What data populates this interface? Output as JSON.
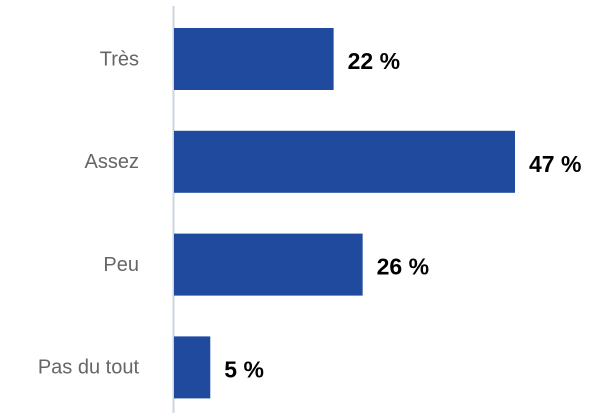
{
  "chart_data": {
    "type": "hbar",
    "categories": [
      "Très",
      "Assez",
      "Peu",
      "Pas du tout"
    ],
    "values": [
      22,
      47,
      26,
      5
    ],
    "value_labels": [
      "22 %",
      "47 %",
      "26 %",
      "5 %"
    ],
    "color": "#1f4a9e"
  }
}
